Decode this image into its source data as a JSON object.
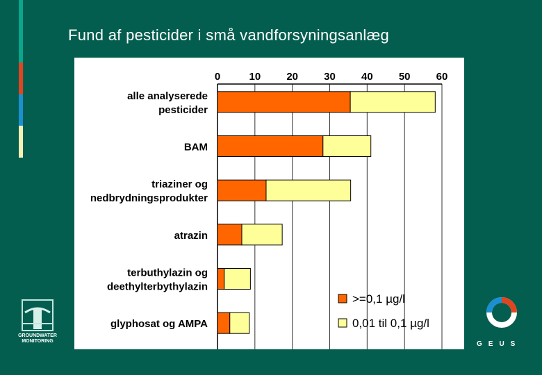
{
  "slide": {
    "title": "Fund af pesticider i små vandforsyningsanlæg"
  },
  "logos": {
    "left_text_line1": "GROUNDWATER",
    "left_text_line2": "MONITORING",
    "right_text": "GEUS",
    "left_icon": "groundwater-monitoring-logo",
    "right_icon": "geus-logo"
  },
  "colors": {
    "background": "#045e4f",
    "accent_stripes": [
      "#0aa58a",
      "#e0451f",
      "#1b8fd0",
      "#f4f0b6"
    ],
    "series_high": "#ff6600",
    "series_low": "#ffff99"
  },
  "chart_data": {
    "type": "bar",
    "orientation": "horizontal",
    "stacked": true,
    "categories": [
      [
        "alle analyserede",
        "pesticider"
      ],
      [
        "BAM"
      ],
      [
        "triaziner og",
        "nedbrydningsprodukter"
      ],
      [
        "atrazin"
      ],
      [
        "terbuthylazin og",
        "deethylterbythylazin"
      ],
      [
        "glyphosat og AMPA"
      ]
    ],
    "series": [
      {
        "name": ">=0,1 µg/l",
        "color": "#ff6600",
        "values": [
          35.5,
          28.2,
          13,
          6.5,
          1.8,
          3.3
        ]
      },
      {
        "name": "0,01 til 0,1 µg/l",
        "color": "#ffff99",
        "values": [
          22.7,
          12.8,
          22.6,
          10.8,
          7,
          5.2
        ]
      }
    ],
    "xlim": [
      0,
      60
    ],
    "xticks": [
      "0",
      "10",
      "20",
      "30",
      "40",
      "50",
      "60"
    ],
    "tick_values": [
      0,
      10,
      20,
      30,
      40,
      50,
      60
    ],
    "x_axis_position": "top",
    "grid": true,
    "legend": "bottom-right"
  }
}
